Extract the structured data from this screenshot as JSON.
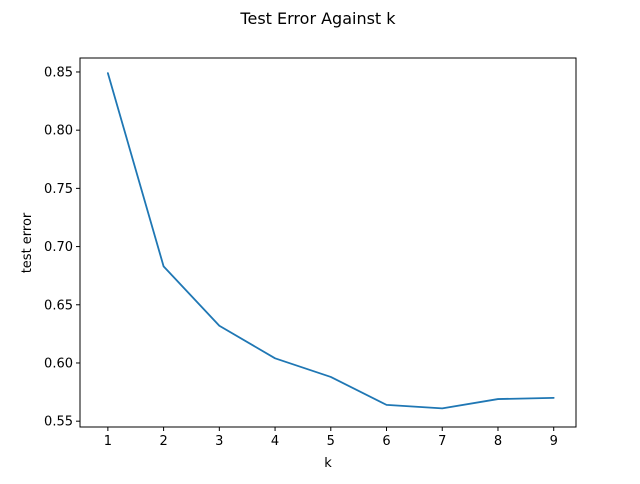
{
  "chart_data": {
    "type": "line",
    "title": "Test Error Against k",
    "xlabel": "k",
    "ylabel": "test error",
    "x": [
      1,
      2,
      3,
      4,
      5,
      6,
      7,
      8,
      9
    ],
    "series": [
      {
        "values": [
          0.849,
          0.683,
          0.632,
          0.604,
          0.588,
          0.564,
          0.561,
          0.569,
          0.57
        ],
        "color": "#1f77b4"
      }
    ],
    "xlim": [
      0.5,
      9.4
    ],
    "ylim": [
      0.545,
      0.862
    ],
    "xticks": [
      1,
      2,
      3,
      4,
      5,
      6,
      7,
      8,
      9
    ],
    "yticks": [
      0.55,
      0.6,
      0.65,
      0.7,
      0.75,
      0.8,
      0.85
    ],
    "ytick_labels": [
      "0.55",
      "0.60",
      "0.65",
      "0.70",
      "0.75",
      "0.80",
      "0.85"
    ],
    "grid": false,
    "legend": false
  }
}
